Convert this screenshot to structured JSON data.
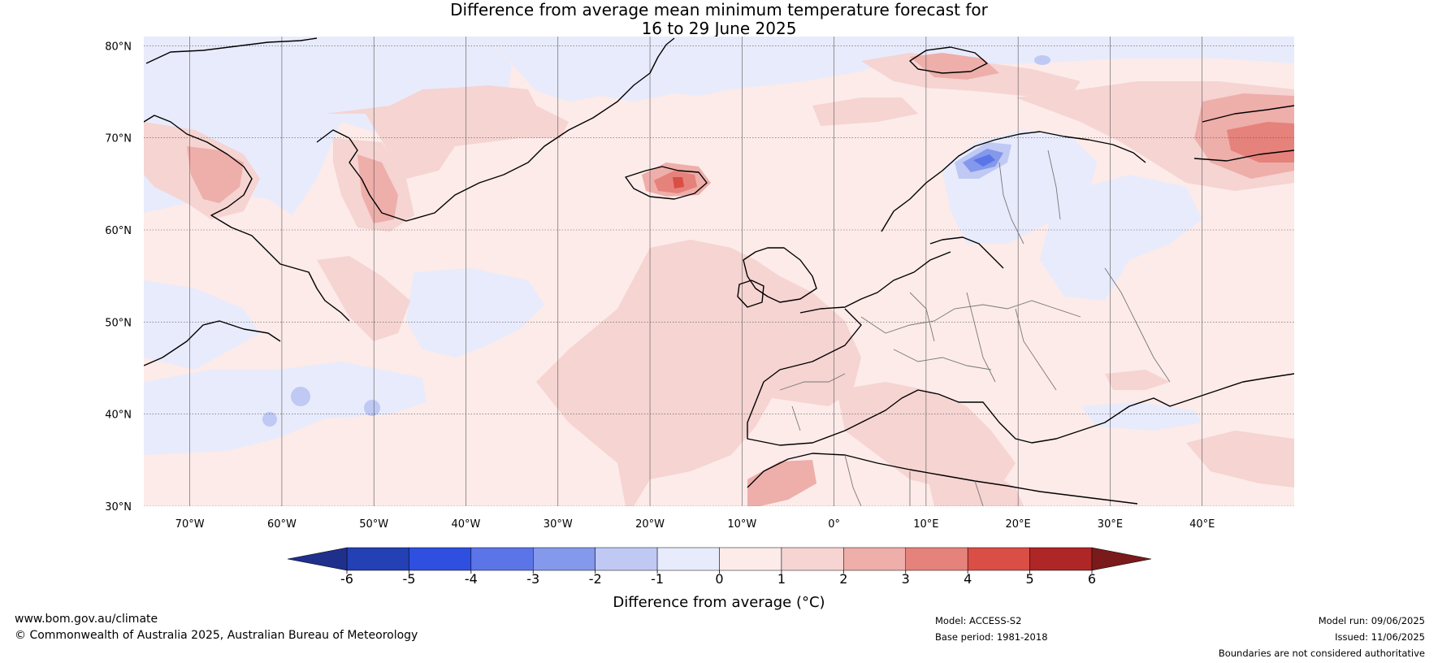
{
  "title_line1": "Difference from average mean minimum temperature forecast for",
  "title_line2": "16 to 29 June 2025",
  "map": {
    "lon_range": [
      -75,
      50
    ],
    "lat_range": [
      30,
      81
    ],
    "lat_ticks": [
      {
        "value": 80,
        "label": "80°N"
      },
      {
        "value": 70,
        "label": "70°N"
      },
      {
        "value": 60,
        "label": "60°N"
      },
      {
        "value": 50,
        "label": "50°N"
      },
      {
        "value": 40,
        "label": "40°N"
      },
      {
        "value": 30,
        "label": "30°N"
      }
    ],
    "lon_ticks": [
      {
        "value": -70,
        "label": "70°W"
      },
      {
        "value": -60,
        "label": "60°W"
      },
      {
        "value": -50,
        "label": "50°W"
      },
      {
        "value": -40,
        "label": "40°W"
      },
      {
        "value": -30,
        "label": "30°W"
      },
      {
        "value": -20,
        "label": "20°W"
      },
      {
        "value": -10,
        "label": "10°W"
      },
      {
        "value": 0,
        "label": "0°"
      },
      {
        "value": 10,
        "label": "10°E"
      },
      {
        "value": 20,
        "label": "20°E"
      },
      {
        "value": 30,
        "label": "30°E"
      },
      {
        "value": 40,
        "label": "40°E"
      }
    ],
    "gridlines": true
  },
  "colorbar": {
    "label": "Difference from average (°C)",
    "tick_labels": [
      "-6",
      "-5",
      "-4",
      "-3",
      "-2",
      "-1",
      "0",
      "1",
      "2",
      "3",
      "4",
      "5",
      "6"
    ],
    "bins": [
      {
        "from": -6,
        "to": -5,
        "color": "#2340b4"
      },
      {
        "from": -5,
        "to": -4,
        "color": "#2e4fe0"
      },
      {
        "from": -4,
        "to": -3,
        "color": "#5b74e8"
      },
      {
        "from": -3,
        "to": -2,
        "color": "#8498ec"
      },
      {
        "from": -2,
        "to": -1,
        "color": "#bfc9f4"
      },
      {
        "from": -1,
        "to": 0,
        "color": "#e8ebfb"
      },
      {
        "from": 0,
        "to": 1,
        "color": "#fcebe9"
      },
      {
        "from": 1,
        "to": 2,
        "color": "#f5d4d2"
      },
      {
        "from": 2,
        "to": 3,
        "color": "#eeaeaa"
      },
      {
        "from": 3,
        "to": 4,
        "color": "#e5827b"
      },
      {
        "from": 4,
        "to": 5,
        "color": "#d94e45"
      },
      {
        "from": 5,
        "to": 6,
        "color": "#ae2626"
      }
    ],
    "under_color": "#1f2f8c",
    "over_color": "#7a1a1a"
  },
  "anomaly_regions": [
    {
      "name": "greenland-sea",
      "category": "-1 to 0",
      "color": "#e8ebfb"
    },
    {
      "name": "norway-sweden",
      "category": "-3 to -2",
      "color": "#8498ec"
    },
    {
      "name": "iceland",
      "category": "3 to 4",
      "color": "#e5827b"
    },
    {
      "name": "barents-russia",
      "category": "3 to 4",
      "color": "#e5827b"
    },
    {
      "name": "mediterranean",
      "category": "1 to 2",
      "color": "#f5d4d2"
    },
    {
      "name": "east-atlantic",
      "category": "1 to 2",
      "color": "#f5d4d2"
    }
  ],
  "footer": {
    "website": "www.bom.gov.au/climate",
    "copyright": "© Commonwealth of Australia 2025, Australian Bureau of Meteorology",
    "model": "Model: ACCESS-S2",
    "base_period": "Base period: 1981-2018",
    "model_run": "Model run: 09/06/2025",
    "issued": "Issued: 11/06/2025",
    "disclaimer": "Boundaries are not considered authoritative"
  }
}
